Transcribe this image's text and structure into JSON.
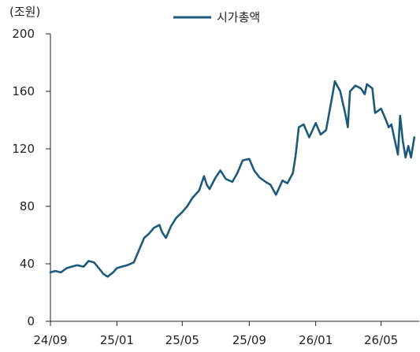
{
  "chart_data": {
    "type": "line",
    "unit_label": "(조원)",
    "legend_position": "top-center",
    "grid": false,
    "ylim": [
      0,
      200
    ],
    "yticks": [
      0,
      40,
      80,
      120,
      160,
      200
    ],
    "xlim": [
      "2024-09-01",
      "2026-07-10"
    ],
    "xticks": [
      {
        "date": "2024-09-01",
        "label": "24/09"
      },
      {
        "date": "2025-01-01",
        "label": "25/01"
      },
      {
        "date": "2025-05-01",
        "label": "25/05"
      },
      {
        "date": "2025-09-01",
        "label": "25/09"
      },
      {
        "date": "2026-01-01",
        "label": "26/01"
      },
      {
        "date": "2026-05-01",
        "label": "26/05"
      }
    ],
    "series": [
      {
        "name": "시가총액",
        "color": "#1b5a7a",
        "points": [
          [
            "2024-09-01",
            34
          ],
          [
            "2024-09-10",
            35
          ],
          [
            "2024-09-20",
            34
          ],
          [
            "2024-10-01",
            37
          ],
          [
            "2024-10-10",
            38
          ],
          [
            "2024-10-20",
            39
          ],
          [
            "2024-11-01",
            38
          ],
          [
            "2024-11-10",
            42
          ],
          [
            "2024-11-20",
            41
          ],
          [
            "2024-12-01",
            36
          ],
          [
            "2024-12-07",
            33
          ],
          [
            "2024-12-15",
            31
          ],
          [
            "2024-12-25",
            34
          ],
          [
            "2025-01-01",
            37
          ],
          [
            "2025-01-10",
            38
          ],
          [
            "2025-01-20",
            39
          ],
          [
            "2025-02-01",
            41
          ],
          [
            "2025-02-10",
            49
          ],
          [
            "2025-02-20",
            58
          ],
          [
            "2025-03-01",
            61
          ],
          [
            "2025-03-10",
            65
          ],
          [
            "2025-03-20",
            67
          ],
          [
            "2025-03-25",
            62
          ],
          [
            "2025-04-01",
            58
          ],
          [
            "2025-04-10",
            66
          ],
          [
            "2025-04-20",
            72
          ],
          [
            "2025-05-01",
            76
          ],
          [
            "2025-05-10",
            80
          ],
          [
            "2025-05-20",
            86
          ],
          [
            "2025-06-01",
            91
          ],
          [
            "2025-06-10",
            101
          ],
          [
            "2025-06-15",
            95
          ],
          [
            "2025-06-20",
            92
          ],
          [
            "2025-07-01",
            100
          ],
          [
            "2025-07-10",
            105
          ],
          [
            "2025-07-20",
            99
          ],
          [
            "2025-08-01",
            97
          ],
          [
            "2025-08-10",
            103
          ],
          [
            "2025-08-20",
            112
          ],
          [
            "2025-09-01",
            113
          ],
          [
            "2025-09-10",
            105
          ],
          [
            "2025-09-20",
            100
          ],
          [
            "2025-10-01",
            97
          ],
          [
            "2025-10-10",
            95
          ],
          [
            "2025-10-20",
            88
          ],
          [
            "2025-11-01",
            98
          ],
          [
            "2025-11-10",
            96
          ],
          [
            "2025-11-20",
            103
          ],
          [
            "2025-11-25",
            115
          ],
          [
            "2025-12-01",
            135
          ],
          [
            "2025-12-10",
            137
          ],
          [
            "2025-12-20",
            128
          ],
          [
            "2026-01-01",
            138
          ],
          [
            "2026-01-10",
            130
          ],
          [
            "2026-01-20",
            133
          ],
          [
            "2026-02-01",
            158
          ],
          [
            "2026-02-05",
            167
          ],
          [
            "2026-02-15",
            160
          ],
          [
            "2026-02-25",
            143
          ],
          [
            "2026-03-01",
            135
          ],
          [
            "2026-03-05",
            160
          ],
          [
            "2026-03-15",
            164
          ],
          [
            "2026-03-25",
            162
          ],
          [
            "2026-04-01",
            158
          ],
          [
            "2026-04-05",
            165
          ],
          [
            "2026-04-15",
            162
          ],
          [
            "2026-04-20",
            145
          ],
          [
            "2026-05-01",
            148
          ],
          [
            "2026-05-10",
            140
          ],
          [
            "2026-05-15",
            135
          ],
          [
            "2026-05-20",
            137
          ],
          [
            "2026-05-25",
            128
          ],
          [
            "2026-06-01",
            116
          ],
          [
            "2026-06-05",
            143
          ],
          [
            "2026-06-10",
            125
          ],
          [
            "2026-06-15",
            114
          ],
          [
            "2026-06-20",
            122
          ],
          [
            "2026-06-25",
            114
          ],
          [
            "2026-07-01",
            128
          ]
        ]
      }
    ]
  }
}
